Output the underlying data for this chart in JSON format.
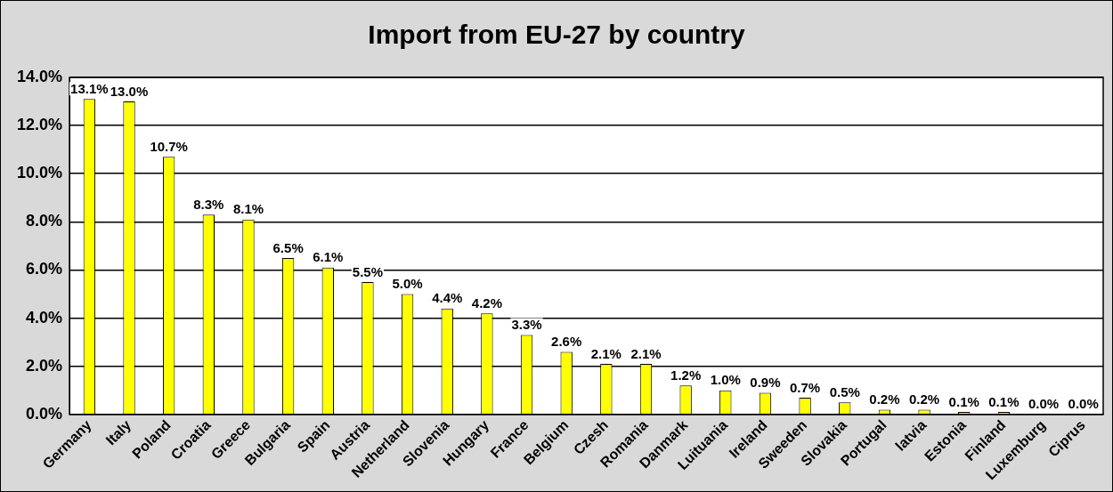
{
  "chart_data": {
    "type": "bar",
    "title": "Import from EU-27 by country",
    "categories": [
      "Germany",
      "Italy",
      "Poland",
      "Croatia",
      "Greece",
      "Bulgaria",
      "Spain",
      "Austria",
      "Netherland",
      "Slovenia",
      "Hungary",
      "France",
      "Belgium",
      "Czesh",
      "Romania",
      "Danmark",
      "Luituania",
      "Ireland",
      "Sweeden",
      "Slovakia",
      "Portugal",
      "latvia",
      "Estonia",
      "Finland",
      "Luxemburg",
      "Ciprus"
    ],
    "values": [
      13.1,
      13.0,
      10.7,
      8.3,
      8.1,
      6.5,
      6.1,
      5.5,
      5.0,
      4.4,
      4.2,
      3.3,
      2.6,
      2.1,
      2.1,
      1.2,
      1.0,
      0.9,
      0.7,
      0.5,
      0.2,
      0.2,
      0.1,
      0.1,
      0.0,
      0.0
    ],
    "value_labels": [
      "13.1%",
      "13.0%",
      "10.7%",
      "8.3%",
      "8.1%",
      "6.5%",
      "6.1%",
      "5.5%",
      "5.0%",
      "4.4%",
      "4.2%",
      "3.3%",
      "2.6%",
      "2.1%",
      "2.1%",
      "1.2%",
      "1.0%",
      "0.9%",
      "0.7%",
      "0.5%",
      "0.2%",
      "0.2%",
      "0.1%",
      "0.1%",
      "0.0%",
      "0.0%"
    ],
    "color": "#ffff00",
    "ylim": [
      0,
      14
    ],
    "yticks": [
      {
        "value": 0,
        "label": "0.0%"
      },
      {
        "value": 2,
        "label": "2.0%"
      },
      {
        "value": 4,
        "label": "4.0%"
      },
      {
        "value": 6,
        "label": "6.0%"
      },
      {
        "value": 8,
        "label": "8.0%"
      },
      {
        "value": 10,
        "label": "10.0%"
      },
      {
        "value": 12,
        "label": "12.0%"
      },
      {
        "value": 14,
        "label": "14.0%"
      }
    ],
    "grid": "y",
    "legend": false
  }
}
